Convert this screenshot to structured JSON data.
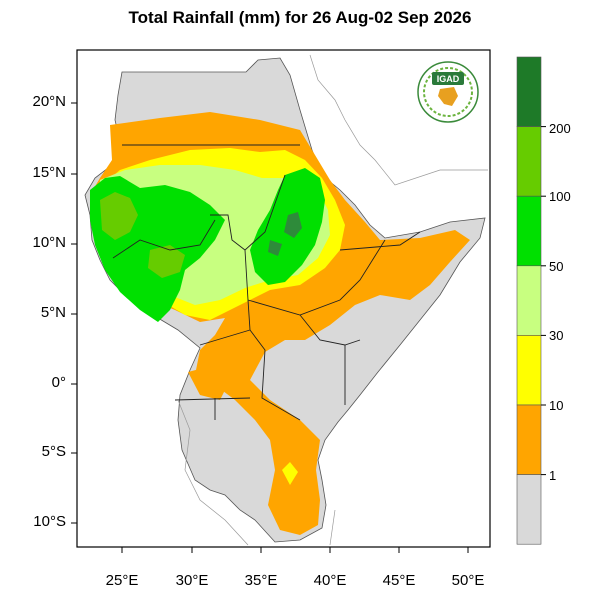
{
  "title": "Total Rainfall (mm) for 26 Aug-02 Sep 2026",
  "logo": {
    "text": "IGAD",
    "icon": "igad-logo"
  },
  "lat_ticks": [
    "20°N",
    "15°N",
    "10°N",
    "5°N",
    "0°",
    "5°S",
    "10°S"
  ],
  "lon_ticks": [
    "25°E",
    "30°E",
    "35°E",
    "40°E",
    "45°E",
    "50°E"
  ],
  "colorbar": {
    "labels": [
      "200",
      "100",
      "50",
      "30",
      "10",
      "1"
    ],
    "colors": [
      "#1e7a28",
      "#66cc00",
      "#00e000",
      "#c8ff80",
      "#ffff00",
      "#ffa500",
      "#d9d9d9"
    ]
  },
  "palette": {
    "land": "#d9d9d9",
    "orange": "#ffa500",
    "yellow": "#ffff00",
    "light_green": "#c8ff80",
    "green": "#00e000",
    "mid_green": "#66cc00",
    "dark_green": "#2e8b3a"
  }
}
